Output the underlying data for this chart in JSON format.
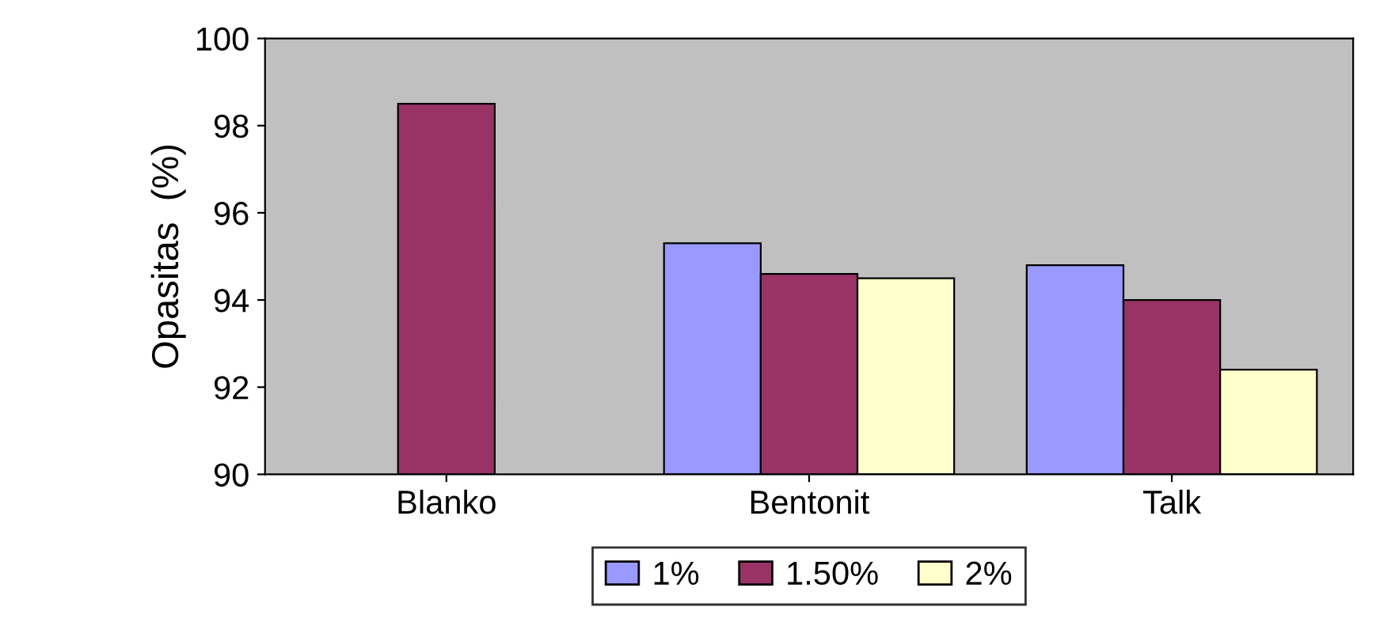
{
  "chart_data": {
    "type": "bar",
    "ylabel": "Opasitas  (%)",
    "categories": [
      "Blanko",
      "Bentonit",
      "Talk"
    ],
    "series": [
      {
        "name": "1%",
        "color": "#9999ff",
        "values": [
          null,
          95.3,
          94.8
        ]
      },
      {
        "name": "1.50%",
        "color": "#993366",
        "values": [
          98.5,
          94.6,
          94.0
        ]
      },
      {
        "name": "2%",
        "color": "#ffffcc",
        "values": [
          null,
          94.5,
          92.4
        ]
      }
    ],
    "ylim": [
      90,
      100
    ],
    "yticks": [
      90,
      92,
      94,
      96,
      98,
      100
    ],
    "grid": false,
    "legend": "bottom"
  }
}
